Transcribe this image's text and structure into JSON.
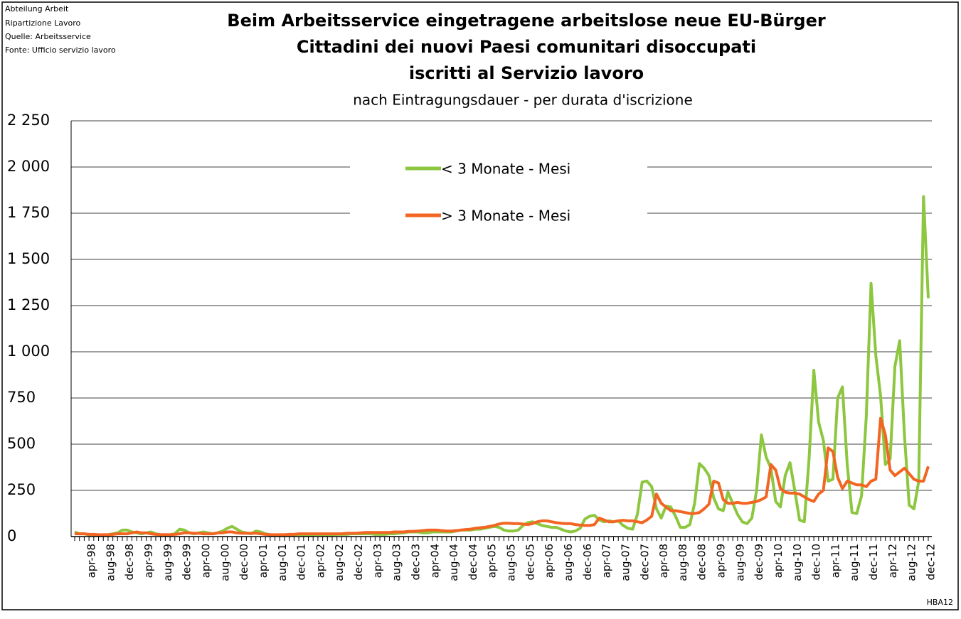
{
  "header": {
    "notes": [
      "Abteilung Arbeit",
      "Ripartizione Lavoro",
      "Quelle: Arbeitsservice",
      "Fonte: Ufficio servizio lavoro"
    ],
    "code": "HBA12"
  },
  "chart_data": {
    "type": "line",
    "title": [
      "Beim Arbeitsservice eingetragene arbeitslose neue EU-Bürger",
      "Cittadini dei nuovi Paesi comunitari disoccupati",
      "iscritti al Servizio lavoro"
    ],
    "subtitle": "nach Eintragungsdauer - per durata d'iscrizione",
    "categories": [
      null,
      null,
      null,
      "apr-98",
      null,
      null,
      null,
      "aug-98",
      null,
      null,
      null,
      "dec-98",
      null,
      null,
      null,
      "apr-99",
      null,
      null,
      null,
      "aug-99",
      null,
      null,
      null,
      "dec-99",
      null,
      null,
      null,
      "apr-00",
      null,
      null,
      null,
      "aug-00",
      null,
      null,
      null,
      "dec-00",
      null,
      null,
      null,
      "apr-01",
      null,
      null,
      null,
      "aug-01",
      null,
      null,
      null,
      "dec-01",
      null,
      null,
      null,
      "apr-02",
      null,
      null,
      null,
      "aug-02",
      null,
      null,
      null,
      "dec-02",
      null,
      null,
      null,
      "apr-03",
      null,
      null,
      null,
      "aug-03",
      null,
      null,
      null,
      "dec-03",
      null,
      null,
      null,
      "apr-04",
      null,
      null,
      null,
      "aug-04",
      null,
      null,
      null,
      "dec-04",
      null,
      null,
      null,
      "apr-05",
      null,
      null,
      null,
      "aug-05",
      null,
      null,
      null,
      "dec-05",
      null,
      null,
      null,
      "apr-06",
      null,
      null,
      null,
      "aug-06",
      null,
      null,
      null,
      "dec-06",
      null,
      null,
      null,
      "apr-07",
      null,
      null,
      null,
      "aug-07",
      null,
      null,
      null,
      "dec-07",
      null,
      null,
      null,
      "apr-08",
      null,
      null,
      null,
      "aug-08",
      null,
      null,
      null,
      "dec-08",
      null,
      null,
      null,
      "apr-09",
      null,
      null,
      null,
      "aug-09",
      null,
      null,
      null,
      "dec-09",
      null,
      null,
      null,
      "apr-10",
      null,
      null,
      null,
      "aug-10",
      null,
      null,
      null,
      "dec-10",
      null,
      null,
      null,
      "apr-11",
      null,
      null,
      null,
      "aug-11",
      null,
      null,
      null,
      "dec-11",
      null,
      null,
      null,
      "apr-12",
      null,
      null,
      null,
      "aug-12",
      null,
      null,
      null,
      "dec-12"
    ],
    "series": [
      {
        "name": "< 3 Monate - Mesi",
        "color": "#8dc63f",
        "values": [
          25,
          15,
          15,
          10,
          10,
          8,
          8,
          10,
          15,
          20,
          35,
          35,
          25,
          20,
          15,
          20,
          25,
          15,
          10,
          10,
          10,
          15,
          40,
          35,
          20,
          15,
          20,
          25,
          20,
          15,
          20,
          30,
          45,
          55,
          40,
          25,
          20,
          15,
          30,
          25,
          15,
          10,
          8,
          8,
          8,
          10,
          10,
          12,
          10,
          8,
          10,
          12,
          10,
          10,
          10,
          12,
          12,
          12,
          15,
          15,
          15,
          15,
          15,
          12,
          12,
          12,
          15,
          15,
          18,
          20,
          25,
          25,
          25,
          20,
          20,
          25,
          25,
          25,
          25,
          25,
          30,
          35,
          35,
          35,
          40,
          40,
          45,
          50,
          55,
          50,
          35,
          30,
          30,
          35,
          60,
          75,
          80,
          70,
          60,
          55,
          50,
          50,
          40,
          30,
          25,
          30,
          45,
          95,
          110,
          115,
          90,
          80,
          85,
          80,
          85,
          60,
          45,
          40,
          120,
          295,
          300,
          270,
          150,
          100,
          165,
          160,
          110,
          50,
          50,
          65,
          180,
          395,
          370,
          330,
          210,
          150,
          140,
          240,
          180,
          120,
          80,
          70,
          100,
          250,
          550,
          430,
          370,
          190,
          160,
          330,
          400,
          250,
          90,
          80,
          420,
          900,
          620,
          520,
          300,
          310,
          750,
          810,
          390,
          130,
          125,
          220,
          650,
          1370,
          980,
          760,
          390,
          420,
          920,
          1060,
          550,
          170,
          150,
          300,
          1840,
          1290
        ]
      },
      {
        "name": "> 3 Monate - Mesi",
        "color": "#f26522",
        "values": [
          15,
          15,
          15,
          12,
          12,
          10,
          10,
          10,
          12,
          15,
          15,
          15,
          20,
          25,
          20,
          20,
          15,
          12,
          10,
          10,
          10,
          12,
          15,
          20,
          20,
          18,
          18,
          15,
          15,
          15,
          20,
          20,
          25,
          25,
          20,
          18,
          18,
          18,
          18,
          15,
          12,
          10,
          10,
          10,
          10,
          12,
          12,
          15,
          15,
          15,
          15,
          15,
          15,
          15,
          15,
          15,
          15,
          18,
          18,
          18,
          20,
          22,
          22,
          22,
          22,
          22,
          22,
          25,
          25,
          25,
          28,
          28,
          30,
          32,
          35,
          35,
          35,
          32,
          30,
          30,
          32,
          35,
          38,
          40,
          45,
          48,
          50,
          55,
          60,
          68,
          72,
          72,
          70,
          70,
          68,
          65,
          70,
          80,
          85,
          85,
          80,
          75,
          72,
          70,
          70,
          65,
          62,
          60,
          60,
          65,
          100,
          90,
          80,
          80,
          85,
          88,
          85,
          85,
          80,
          75,
          90,
          110,
          230,
          180,
          160,
          140,
          140,
          135,
          130,
          125,
          125,
          130,
          150,
          175,
          300,
          290,
          200,
          180,
          180,
          185,
          180,
          180,
          185,
          190,
          200,
          215,
          390,
          360,
          260,
          240,
          235,
          235,
          230,
          215,
          200,
          190,
          230,
          250,
          480,
          460,
          320,
          260,
          300,
          290,
          280,
          280,
          270,
          300,
          310,
          640,
          550,
          360,
          330,
          350,
          370,
          340,
          310,
          300,
          300,
          380
        ]
      }
    ],
    "ylim": [
      0,
      2250
    ],
    "yticks": [
      0,
      250,
      500,
      750,
      {
        "value": 1000,
        "label": "1 000"
      },
      {
        "value": 1250,
        "label": "1 250"
      },
      {
        "value": 1500,
        "label": "1 500"
      },
      {
        "value": 1750,
        "label": "1 750"
      },
      {
        "value": 2000,
        "label": "2 000"
      },
      {
        "value": 2250,
        "label": "2 250"
      }
    ],
    "grid": true,
    "legend": "top"
  }
}
